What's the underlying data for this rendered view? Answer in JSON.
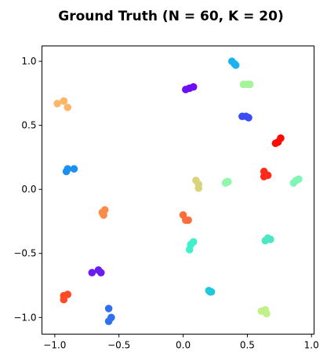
{
  "chart_data": {
    "type": "scatter",
    "title": "Ground Truth (N = 60, K = 20)",
    "xlabel": "",
    "ylabel": "",
    "xlim": [
      -1.1,
      1.02
    ],
    "ylim": [
      -1.13,
      1.12
    ],
    "xticks": [
      -1.0,
      -0.5,
      0.0,
      0.5,
      1.0
    ],
    "xtick_labels": [
      "−1.0",
      "−0.5",
      "0.0",
      "0.5",
      "1.0"
    ],
    "yticks": [
      -1.0,
      -0.5,
      0.0,
      0.5,
      1.0
    ],
    "ytick_labels": [
      "−1.0",
      "−0.5",
      "0.0",
      "0.5",
      "1.0"
    ],
    "grid": false,
    "clusters": [
      {
        "color": "#fdb567",
        "points": [
          [
            -0.98,
            0.67
          ],
          [
            -0.93,
            0.69
          ],
          [
            -0.9,
            0.64
          ]
        ]
      },
      {
        "color": "#1ab2f0",
        "points": [
          [
            0.38,
            1.0
          ],
          [
            0.4,
            0.98
          ],
          [
            0.41,
            0.97
          ]
        ]
      },
      {
        "color": "#a5f49a",
        "points": [
          [
            0.47,
            0.82
          ],
          [
            0.5,
            0.82
          ],
          [
            0.52,
            0.82
          ]
        ]
      },
      {
        "color": "#6e0df8",
        "points": [
          [
            0.02,
            0.78
          ],
          [
            0.05,
            0.79
          ],
          [
            0.08,
            0.8
          ]
        ]
      },
      {
        "color": "#3a4cf6",
        "points": [
          [
            0.46,
            0.57
          ],
          [
            0.49,
            0.57
          ],
          [
            0.51,
            0.56
          ]
        ]
      },
      {
        "color": "#fe0800",
        "points": [
          [
            0.72,
            0.36
          ],
          [
            0.74,
            0.37
          ],
          [
            0.76,
            0.4
          ]
        ]
      },
      {
        "color": "#ff2a1a",
        "points": [
          [
            0.63,
            0.14
          ],
          [
            0.63,
            0.1
          ],
          [
            0.66,
            0.11
          ]
        ]
      },
      {
        "color": "#1b8ff2",
        "points": [
          [
            -0.91,
            0.14
          ],
          [
            -0.9,
            0.16
          ],
          [
            -0.85,
            0.16
          ]
        ]
      },
      {
        "color": "#d9d37c",
        "points": [
          [
            0.1,
            0.07
          ],
          [
            0.12,
            0.04
          ],
          [
            0.12,
            0.01
          ]
        ]
      },
      {
        "color": "#8ef7a8",
        "points": [
          [
            0.33,
            0.05
          ],
          [
            0.34,
            0.06
          ],
          [
            0.35,
            0.06
          ]
        ]
      },
      {
        "color": "#7ff6b6",
        "points": [
          [
            0.86,
            0.05
          ],
          [
            0.88,
            0.07
          ],
          [
            0.9,
            0.08
          ]
        ]
      },
      {
        "color": "#fd8a4a",
        "points": [
          [
            -0.63,
            -0.18
          ],
          [
            -0.61,
            -0.16
          ],
          [
            -0.62,
            -0.2
          ]
        ]
      },
      {
        "color": "#ff6d38",
        "points": [
          [
            0.0,
            -0.2
          ],
          [
            0.02,
            -0.24
          ],
          [
            0.04,
            -0.24
          ]
        ]
      },
      {
        "color": "#3ef1cd",
        "points": [
          [
            0.05,
            -0.47
          ],
          [
            0.06,
            -0.43
          ],
          [
            0.08,
            -0.41
          ]
        ]
      },
      {
        "color": "#4de7c6",
        "points": [
          [
            0.64,
            -0.4
          ],
          [
            0.66,
            -0.38
          ],
          [
            0.68,
            -0.39
          ]
        ]
      },
      {
        "color": "#6a1cf2",
        "points": [
          [
            -0.71,
            -0.65
          ],
          [
            -0.66,
            -0.63
          ],
          [
            -0.64,
            -0.65
          ]
        ]
      },
      {
        "color": "#21c8d9",
        "points": [
          [
            0.2,
            -0.79
          ],
          [
            0.21,
            -0.8
          ],
          [
            0.22,
            -0.8
          ]
        ]
      },
      {
        "color": "#ff4a24",
        "points": [
          [
            -0.93,
            -0.83
          ],
          [
            -0.93,
            -0.86
          ],
          [
            -0.9,
            -0.82
          ]
        ]
      },
      {
        "color": "#2f6ff0",
        "points": [
          [
            -0.58,
            -0.93
          ],
          [
            -0.58,
            -1.03
          ],
          [
            -0.56,
            -1.0
          ]
        ]
      },
      {
        "color": "#c1f087",
        "points": [
          [
            0.61,
            -0.95
          ],
          [
            0.64,
            -0.94
          ],
          [
            0.65,
            -0.97
          ]
        ]
      }
    ]
  }
}
